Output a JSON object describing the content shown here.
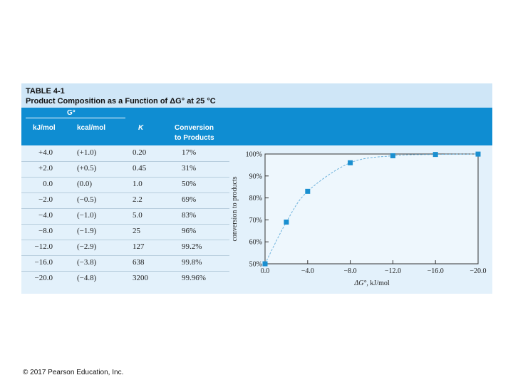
{
  "table": {
    "title_line1": "TABLE 4-1",
    "title_line2": "Product Composition as a Function of ΔG° at 25 °C",
    "headers": {
      "group": "G°",
      "kj": "kJ/mol",
      "kcal": "kcal/mol",
      "k": "K",
      "conv1": "Conversion",
      "conv2": "to Products"
    },
    "rows": [
      {
        "kj": "+4.0",
        "kcal": "(+1.0)",
        "k": "0.20",
        "conv": "17%"
      },
      {
        "kj": "+2.0",
        "kcal": "(+0.5)",
        "k": "0.45",
        "conv": "31%"
      },
      {
        "kj": "0.0",
        "kcal": "(0.0)",
        "k": "1.0",
        "conv": "50%"
      },
      {
        "kj": "−2.0",
        "kcal": "(−0.5)",
        "k": "2.2",
        "conv": "69%"
      },
      {
        "kj": "−4.0",
        "kcal": "(−1.0)",
        "k": "5.0",
        "conv": "83%"
      },
      {
        "kj": "−8.0",
        "kcal": "(−1.9)",
        "k": "25",
        "conv": "96%"
      },
      {
        "kj": "−12.0",
        "kcal": "(−2.9)",
        "k": "127",
        "conv": "99.2%"
      },
      {
        "kj": "−16.0",
        "kcal": "(−3.8)",
        "k": "638",
        "conv": "99.8%"
      },
      {
        "kj": "−20.0",
        "kcal": "(−4.8)",
        "k": "3200",
        "conv": "99.96%"
      }
    ]
  },
  "chart_data": {
    "type": "scatter",
    "title": "",
    "xlabel_symbol": "ΔG°",
    "xlabel_unit": ", kJ/mol",
    "ylabel": "conversion to products",
    "x": [
      0.0,
      -2.0,
      -4.0,
      -8.0,
      -12.0,
      -16.0,
      -20.0
    ],
    "y": [
      50,
      69,
      83,
      96,
      99.2,
      99.8,
      99.96
    ],
    "xlim": [
      0.0,
      -20.0
    ],
    "ylim": [
      50,
      100
    ],
    "xticks": [
      0.0,
      -4.0,
      -8.0,
      -12.0,
      -16.0,
      -20.0
    ],
    "xtick_labels": [
      "0.0",
      "−4.0",
      "−8.0",
      "−12.0",
      "−16.0",
      "−20.0"
    ],
    "yticks": [
      50,
      60,
      70,
      80,
      90,
      100
    ],
    "ytick_labels": [
      "50%",
      "60%",
      "70%",
      "80%",
      "90%",
      "100%"
    ],
    "curve": "smooth fit",
    "marker_color": "#1a8fd0",
    "curve_color": "#6fb3dc"
  },
  "footer": {
    "copyright": "© 2017 Pearson Education, Inc."
  }
}
